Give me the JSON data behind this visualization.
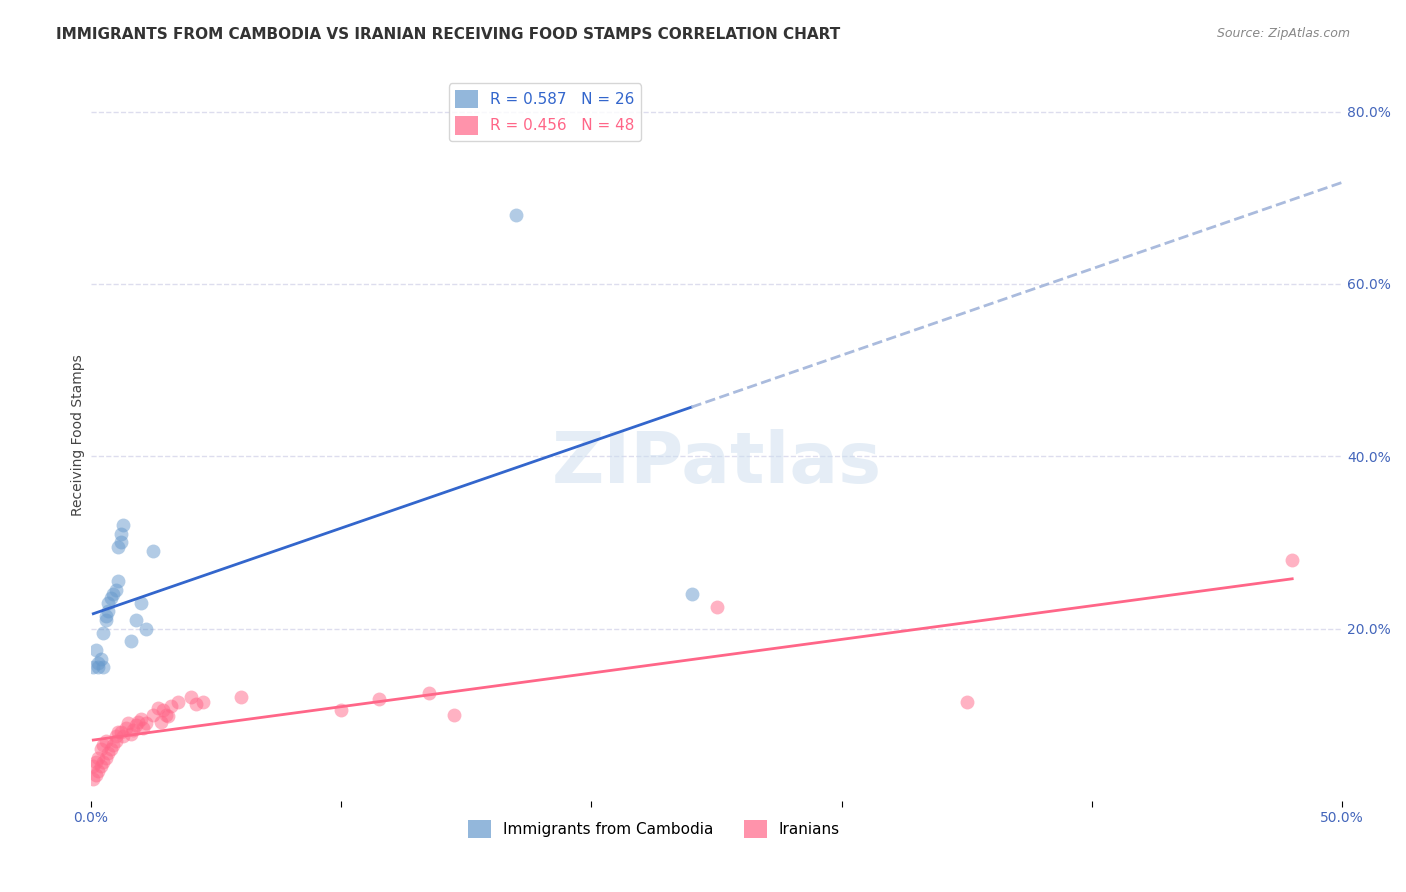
{
  "title": "IMMIGRANTS FROM CAMBODIA VS IRANIAN RECEIVING FOOD STAMPS CORRELATION CHART",
  "source": "Source: ZipAtlas.com",
  "ylabel": "Receiving Food Stamps",
  "ytick_labels": [
    "",
    "20.0%",
    "40.0%",
    "60.0%",
    "80.0%"
  ],
  "ytick_values": [
    0,
    0.2,
    0.4,
    0.6,
    0.8
  ],
  "xlim": [
    0,
    0.5
  ],
  "ylim": [
    0,
    0.85
  ],
  "legend1_label": "R = 0.587   N = 26",
  "legend2_label": "R = 0.456   N = 48",
  "legend_color1": "#6699CC",
  "legend_color2": "#FF6688",
  "trend_color1": "#3366CC",
  "trend_color2": "#FF6688",
  "trend_extend_color": "#AABBDD",
  "cambodia_x": [
    0.001,
    0.002,
    0.003,
    0.003,
    0.004,
    0.005,
    0.005,
    0.006,
    0.006,
    0.007,
    0.007,
    0.008,
    0.009,
    0.01,
    0.011,
    0.011,
    0.012,
    0.012,
    0.013,
    0.016,
    0.018,
    0.02,
    0.022,
    0.025,
    0.17,
    0.24
  ],
  "cambodia_y": [
    0.155,
    0.175,
    0.155,
    0.16,
    0.165,
    0.155,
    0.195,
    0.21,
    0.215,
    0.22,
    0.23,
    0.235,
    0.24,
    0.245,
    0.255,
    0.295,
    0.3,
    0.31,
    0.32,
    0.185,
    0.21,
    0.23,
    0.2,
    0.29,
    0.68,
    0.24
  ],
  "iranian_x": [
    0.001,
    0.001,
    0.002,
    0.002,
    0.003,
    0.003,
    0.004,
    0.004,
    0.005,
    0.005,
    0.006,
    0.006,
    0.007,
    0.008,
    0.009,
    0.01,
    0.01,
    0.011,
    0.012,
    0.013,
    0.014,
    0.015,
    0.016,
    0.017,
    0.018,
    0.019,
    0.02,
    0.021,
    0.022,
    0.025,
    0.027,
    0.028,
    0.029,
    0.03,
    0.031,
    0.032,
    0.035,
    0.04,
    0.042,
    0.045,
    0.06,
    0.1,
    0.115,
    0.135,
    0.145,
    0.25,
    0.35,
    0.48
  ],
  "iranian_y": [
    0.025,
    0.04,
    0.03,
    0.045,
    0.035,
    0.05,
    0.04,
    0.06,
    0.045,
    0.065,
    0.05,
    0.07,
    0.055,
    0.06,
    0.065,
    0.07,
    0.075,
    0.08,
    0.08,
    0.075,
    0.085,
    0.09,
    0.078,
    0.082,
    0.088,
    0.092,
    0.095,
    0.085,
    0.09,
    0.1,
    0.108,
    0.092,
    0.105,
    0.1,
    0.098,
    0.11,
    0.115,
    0.12,
    0.112,
    0.115,
    0.12,
    0.105,
    0.118,
    0.125,
    0.1,
    0.225,
    0.115,
    0.28
  ],
  "marker_size": 100,
  "marker_alpha": 0.5,
  "background_color": "#FFFFFF",
  "grid_color": "#DDDDEE",
  "title_fontsize": 11,
  "axis_label_fontsize": 10,
  "tick_fontsize": 10,
  "watermark_text": "ZIPatlas",
  "watermark_color": "#CCDDEE",
  "watermark_fontsize": 52,
  "watermark_alpha": 0.5,
  "bottom_legend1": "Immigrants from Cambodia",
  "bottom_legend2": "Iranians"
}
